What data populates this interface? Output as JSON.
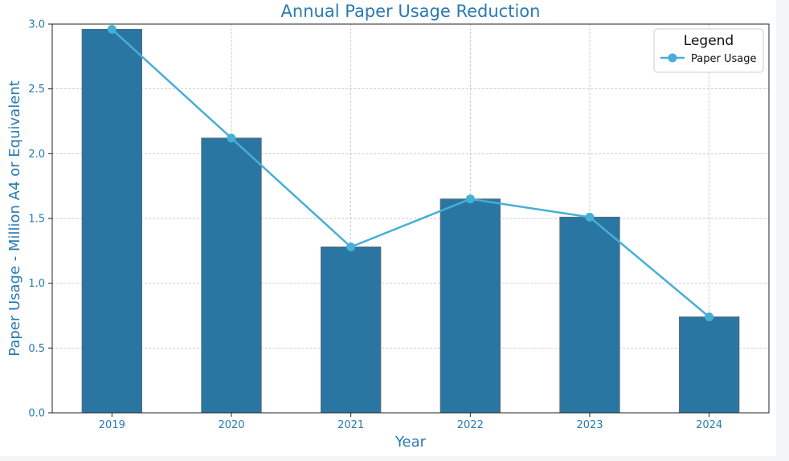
{
  "chart_data": {
    "type": "bar",
    "title": "Annual Paper Usage Reduction",
    "xlabel": "Year",
    "ylabel": "Paper Usage - Million A4 or Equivalent",
    "categories": [
      "2019",
      "2020",
      "2021",
      "2022",
      "2023",
      "2024"
    ],
    "series": [
      {
        "name": "Paper Usage",
        "kind": "bar",
        "values": [
          2.96,
          2.12,
          1.28,
          1.65,
          1.51,
          0.74
        ]
      },
      {
        "name": "Paper Usage",
        "kind": "line",
        "marker": "circle",
        "values": [
          2.96,
          2.12,
          1.28,
          1.65,
          1.51,
          0.74
        ]
      }
    ],
    "ylim": [
      0,
      3.0
    ],
    "yticks": [
      "0.0",
      "0.5",
      "1.0",
      "1.5",
      "2.0",
      "2.5",
      "3.0"
    ],
    "grid": true,
    "legend": {
      "title": "Legend",
      "placement": "top-right",
      "entries": [
        "Paper Usage"
      ]
    },
    "colors": {
      "bar": "#2a76a3",
      "bar_edge": "#5b6b74",
      "line": "#45afd6",
      "text": "#2a7ab0",
      "grid": "#b8b8b8"
    }
  }
}
